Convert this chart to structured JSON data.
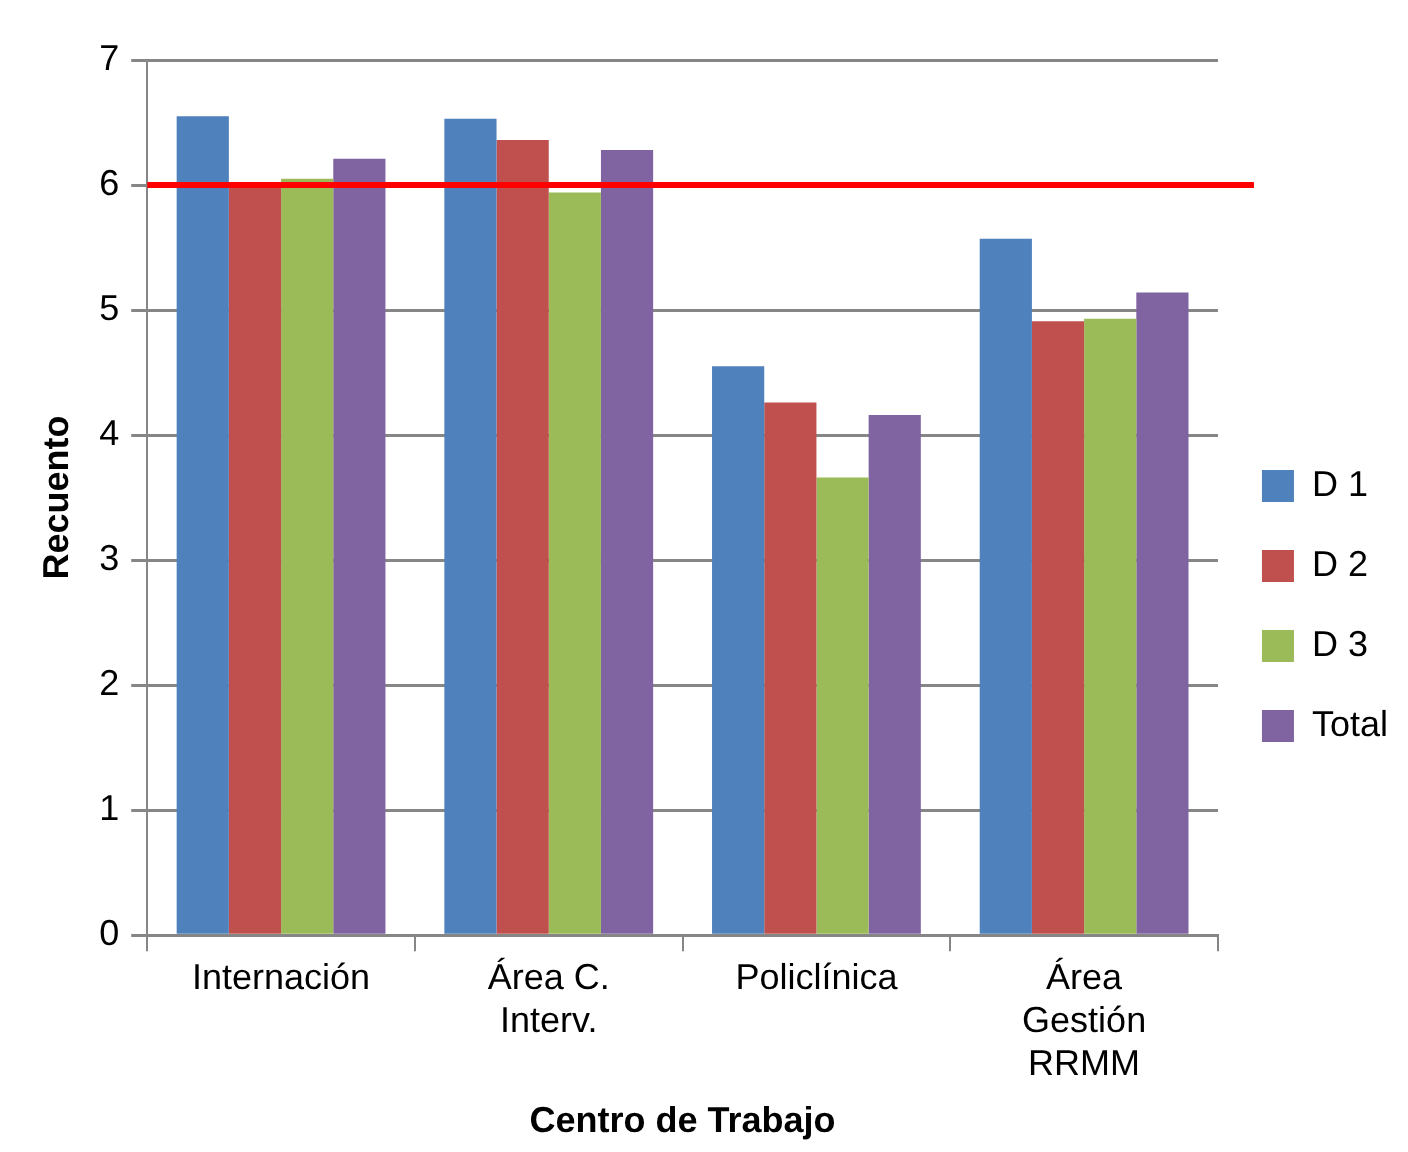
{
  "chart_data": {
    "type": "bar",
    "xlabel": "Centro de Trabajo",
    "ylabel": "Recuento",
    "categories": [
      "Internación",
      "Área C. Interv.",
      "Policlínica",
      "Área Gestión RRMM"
    ],
    "series": [
      {
        "name": "D 1",
        "color": "#4f81bd",
        "values": [
          6.55,
          6.53,
          4.55,
          5.57
        ]
      },
      {
        "name": "D 2",
        "color": "#c0504d",
        "values": [
          6.0,
          6.36,
          4.26,
          4.91
        ]
      },
      {
        "name": "D 3",
        "color": "#9bbb59",
        "values": [
          6.05,
          5.94,
          3.66,
          4.93
        ]
      },
      {
        "name": "Total",
        "color": "#8064a2",
        "values": [
          6.21,
          6.28,
          4.16,
          5.14
        ]
      }
    ],
    "ylim": [
      0,
      7
    ],
    "yticks": [
      0,
      1,
      2,
      3,
      4,
      5,
      6,
      7
    ],
    "grid": "y",
    "legend": "right",
    "ref_lines": [
      {
        "axis": "y",
        "value": 6,
        "color": "#ff0000"
      }
    ]
  }
}
